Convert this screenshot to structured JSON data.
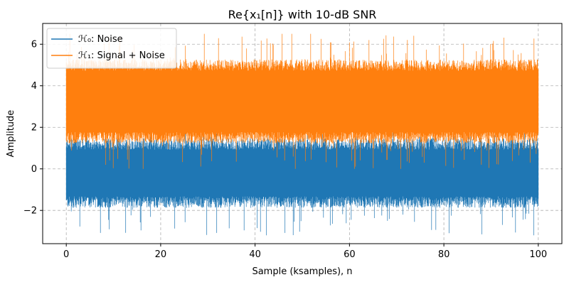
{
  "chart_data": {
    "type": "line",
    "title": "Re{x₁[n]} with 10-dB SNR",
    "xlabel": "Sample (ksamples), n",
    "ylabel": "Amplitude",
    "xlim": [
      -5,
      105
    ],
    "ylim": [
      -3.6,
      7.0
    ],
    "xticks": [
      0,
      20,
      40,
      60,
      80,
      100
    ],
    "yticks": [
      -2,
      0,
      2,
      4,
      6
    ],
    "grid": true,
    "legend_position": "top-left",
    "series": [
      {
        "name": "ℋ₀: Noise",
        "color": "#1f77b4",
        "x_range_ksamples": [
          0,
          100
        ],
        "mean": 0,
        "typical_band": [
          -1.6,
          1.2
        ],
        "min": -3.2,
        "max": 1.8
      },
      {
        "name": "ℋ₁: Signal + Noise",
        "color": "#ff7f0e",
        "x_range_ksamples": [
          0,
          100
        ],
        "mean": 3,
        "typical_band": [
          1.5,
          5.0
        ],
        "min": 0.0,
        "max": 6.5
      }
    ]
  }
}
